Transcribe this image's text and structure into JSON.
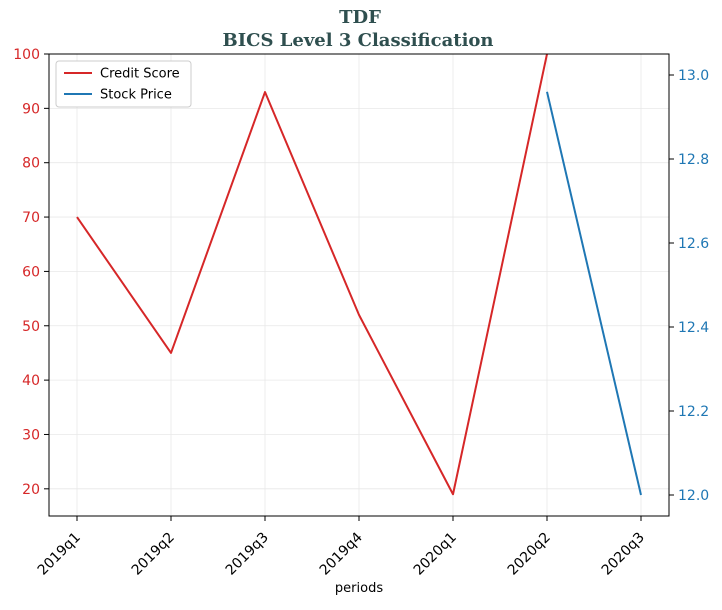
{
  "chart_data": {
    "type": "line",
    "title": "TDF",
    "subtitle": "BICS Level 3 Classification",
    "xlabel": "periods",
    "categories": [
      "2019q1",
      "2019q2",
      "2019q3",
      "2019q4",
      "2020q1",
      "2020q2",
      "2020q3"
    ],
    "series": [
      {
        "name": "Credit Score",
        "axis": "left",
        "color": "#d62728",
        "values": [
          70,
          45,
          93,
          52,
          19,
          100,
          null
        ]
      },
      {
        "name": "Stock Price",
        "axis": "right",
        "color": "#1f77b4",
        "values": [
          null,
          null,
          null,
          null,
          null,
          12.96,
          12.0
        ]
      }
    ],
    "y_left": {
      "ylim": [
        15,
        100
      ],
      "ticks": [
        "20",
        "30",
        "40",
        "50",
        "60",
        "70",
        "80",
        "90",
        "100"
      ],
      "color": "#d62728"
    },
    "y_right": {
      "ylim": [
        11.95,
        13.05
      ],
      "ticks": [
        "12.0",
        "12.2",
        "12.4",
        "12.6",
        "12.8",
        "13.0"
      ],
      "color": "#1f77b4"
    },
    "grid": true,
    "legend": "top-left"
  }
}
